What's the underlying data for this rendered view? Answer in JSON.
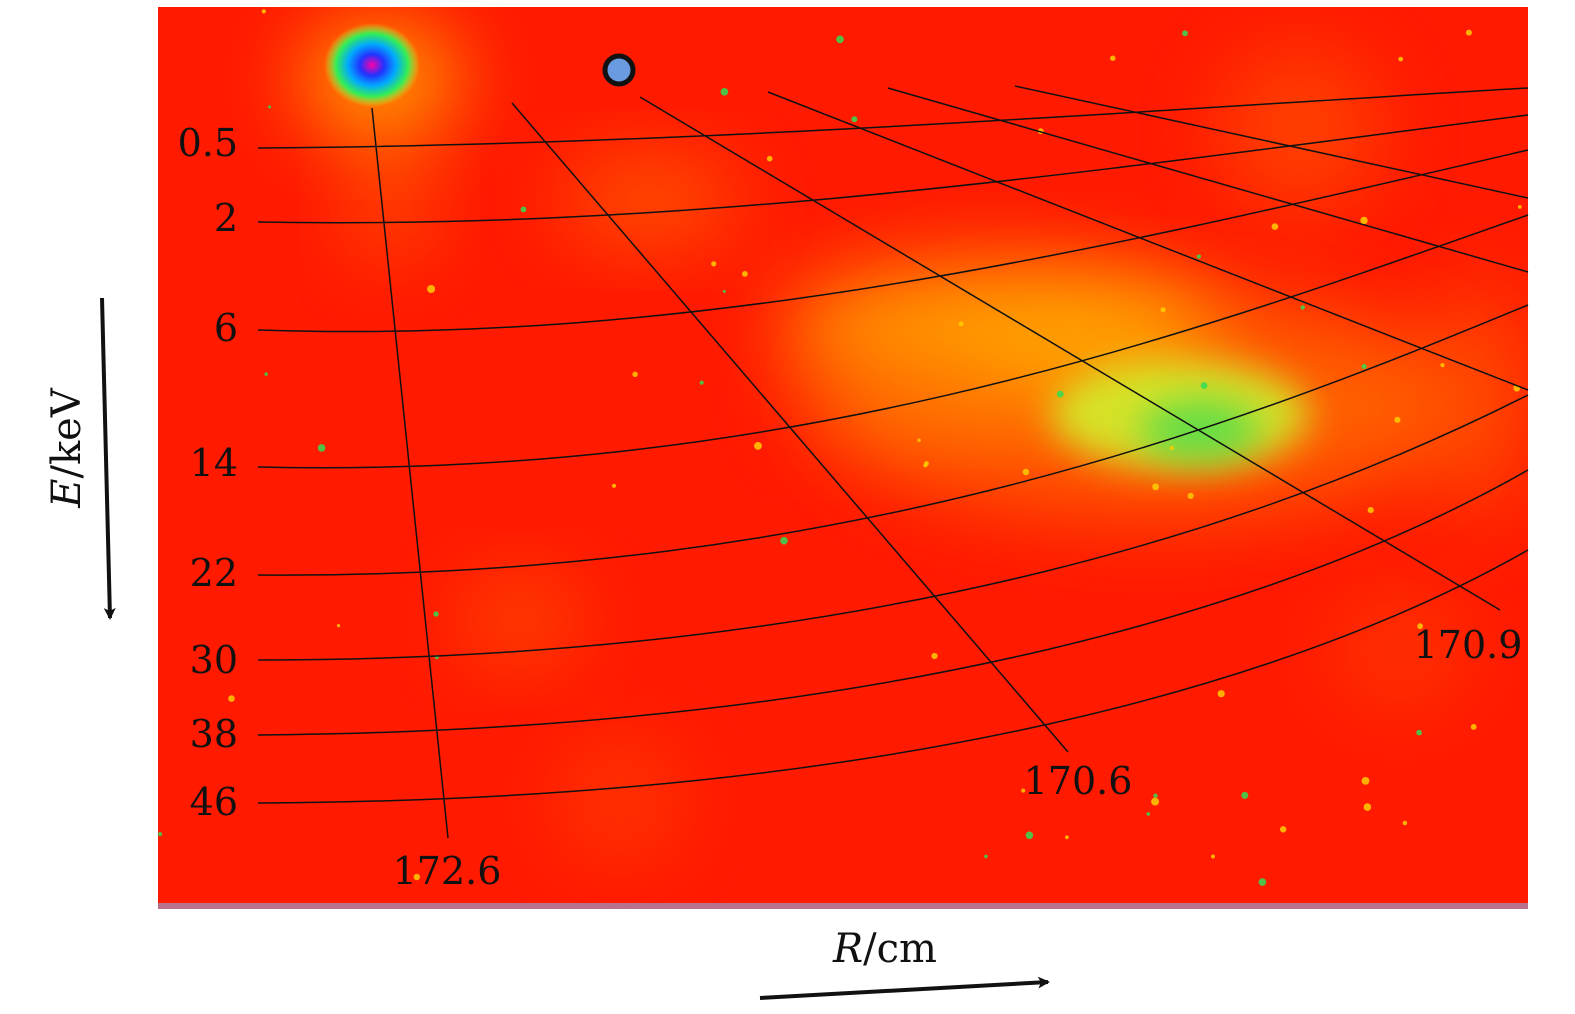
{
  "chart_data": {
    "type": "heatmap",
    "title": "",
    "xlabel": {
      "symbol": "R",
      "unit": "/cm"
    },
    "ylabel": {
      "symbol": "E",
      "unit": "/keV"
    },
    "energy_contours_keV": [
      "0.5",
      "2",
      "6",
      "14",
      "22",
      "30",
      "38",
      "46"
    ],
    "radius_contours_cm": [
      "172.6",
      "170.6",
      "170.9"
    ],
    "colormap": [
      "#ff0000",
      "#ff6600",
      "#ffcc00",
      "#ccff33",
      "#33dd55",
      "#00aaff",
      "#2233ff",
      "#ff00aa"
    ],
    "background_color": "#ff1a00",
    "grid": false,
    "legend": "none"
  }
}
